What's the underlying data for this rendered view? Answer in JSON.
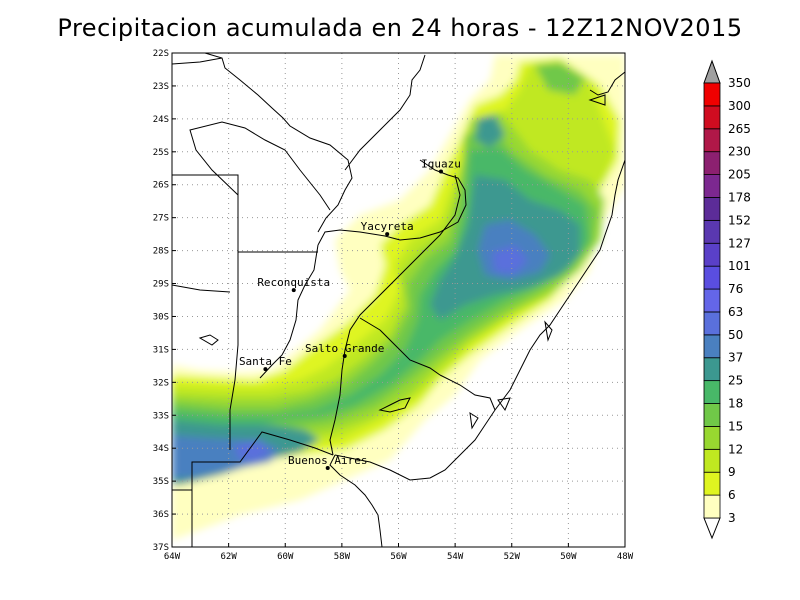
{
  "title": "Precipitacion acumulada en 24 horas - 12Z12NOV2015",
  "lat_labels": [
    "22S",
    "23S",
    "24S",
    "25S",
    "26S",
    "27S",
    "28S",
    "29S",
    "30S",
    "31S",
    "32S",
    "33S",
    "34S",
    "35S",
    "36S",
    "37S"
  ],
  "lon_labels": [
    "64W",
    "62W",
    "60W",
    "58W",
    "56W",
    "54W",
    "52W",
    "50W",
    "48W"
  ],
  "cities": [
    {
      "name": "Iguazu",
      "lon": -54.5,
      "lat": -25.6
    },
    {
      "name": "Yacyreta",
      "lon": -56.4,
      "lat": -27.5
    },
    {
      "name": "Reconquista",
      "lon": -59.7,
      "lat": -29.2
    },
    {
      "name": "Salto Grande",
      "lon": -57.9,
      "lat": -31.2
    },
    {
      "name": "Santa Fe",
      "lon": -60.7,
      "lat": -31.6
    },
    {
      "name": "Buenos Aires",
      "lon": -58.5,
      "lat": -34.6
    }
  ],
  "colorbar": {
    "levels": [
      "3",
      "6",
      "9",
      "12",
      "15",
      "18",
      "25",
      "37",
      "50",
      "63",
      "76",
      "101",
      "127",
      "152",
      "178",
      "205",
      "230",
      "265",
      "300",
      "350"
    ],
    "colors": [
      "#ffffc0",
      "#dff520",
      "#c0e820",
      "#98d830",
      "#70c848",
      "#48b868",
      "#3c9890",
      "#4a80c0",
      "#5a70dc",
      "#6466e8",
      "#5a4ee0",
      "#5a40c8",
      "#5a38b0",
      "#5c2c98",
      "#7c2890",
      "#8c2070",
      "#b01848",
      "#d00c20",
      "#f00000",
      "#ff2020"
    ],
    "under_color": "#ffffff",
    "over_color": "#a0a0a0"
  }
}
